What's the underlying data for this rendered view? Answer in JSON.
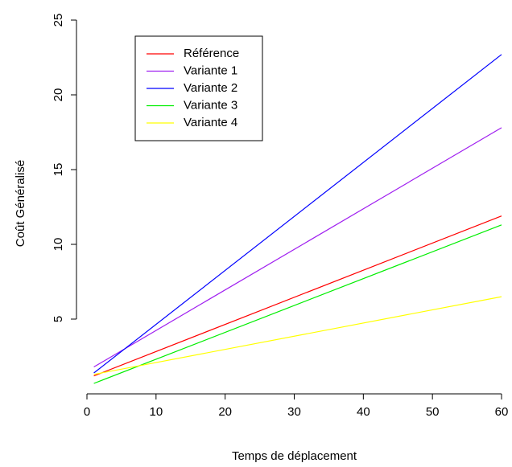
{
  "chart_data": {
    "type": "line",
    "title": "",
    "xlabel": "Temps de déplacement",
    "ylabel": "Coût Généralisé",
    "xlim": [
      0,
      60
    ],
    "ylim": [
      0,
      25
    ],
    "x_ticks": [
      0,
      10,
      20,
      30,
      40,
      50,
      60
    ],
    "y_ticks": [
      5,
      10,
      15,
      20,
      25
    ],
    "grid": false,
    "legend_position": "top-left",
    "series": [
      {
        "name": "Référence",
        "color": "#ff0000",
        "x": [
          1,
          60
        ],
        "y": [
          1.2,
          11.9
        ]
      },
      {
        "name": "Variante 1",
        "color": "#a020f0",
        "x": [
          1,
          60
        ],
        "y": [
          1.8,
          17.8
        ]
      },
      {
        "name": "Variante 2",
        "color": "#0000ff",
        "x": [
          1,
          60
        ],
        "y": [
          1.4,
          22.7
        ]
      },
      {
        "name": "Variante 3",
        "color": "#00ee00",
        "x": [
          1,
          60
        ],
        "y": [
          0.7,
          11.3
        ]
      },
      {
        "name": "Variante 4",
        "color": "#ffff00",
        "x": [
          1,
          60
        ],
        "y": [
          1.3,
          6.5
        ]
      }
    ]
  }
}
